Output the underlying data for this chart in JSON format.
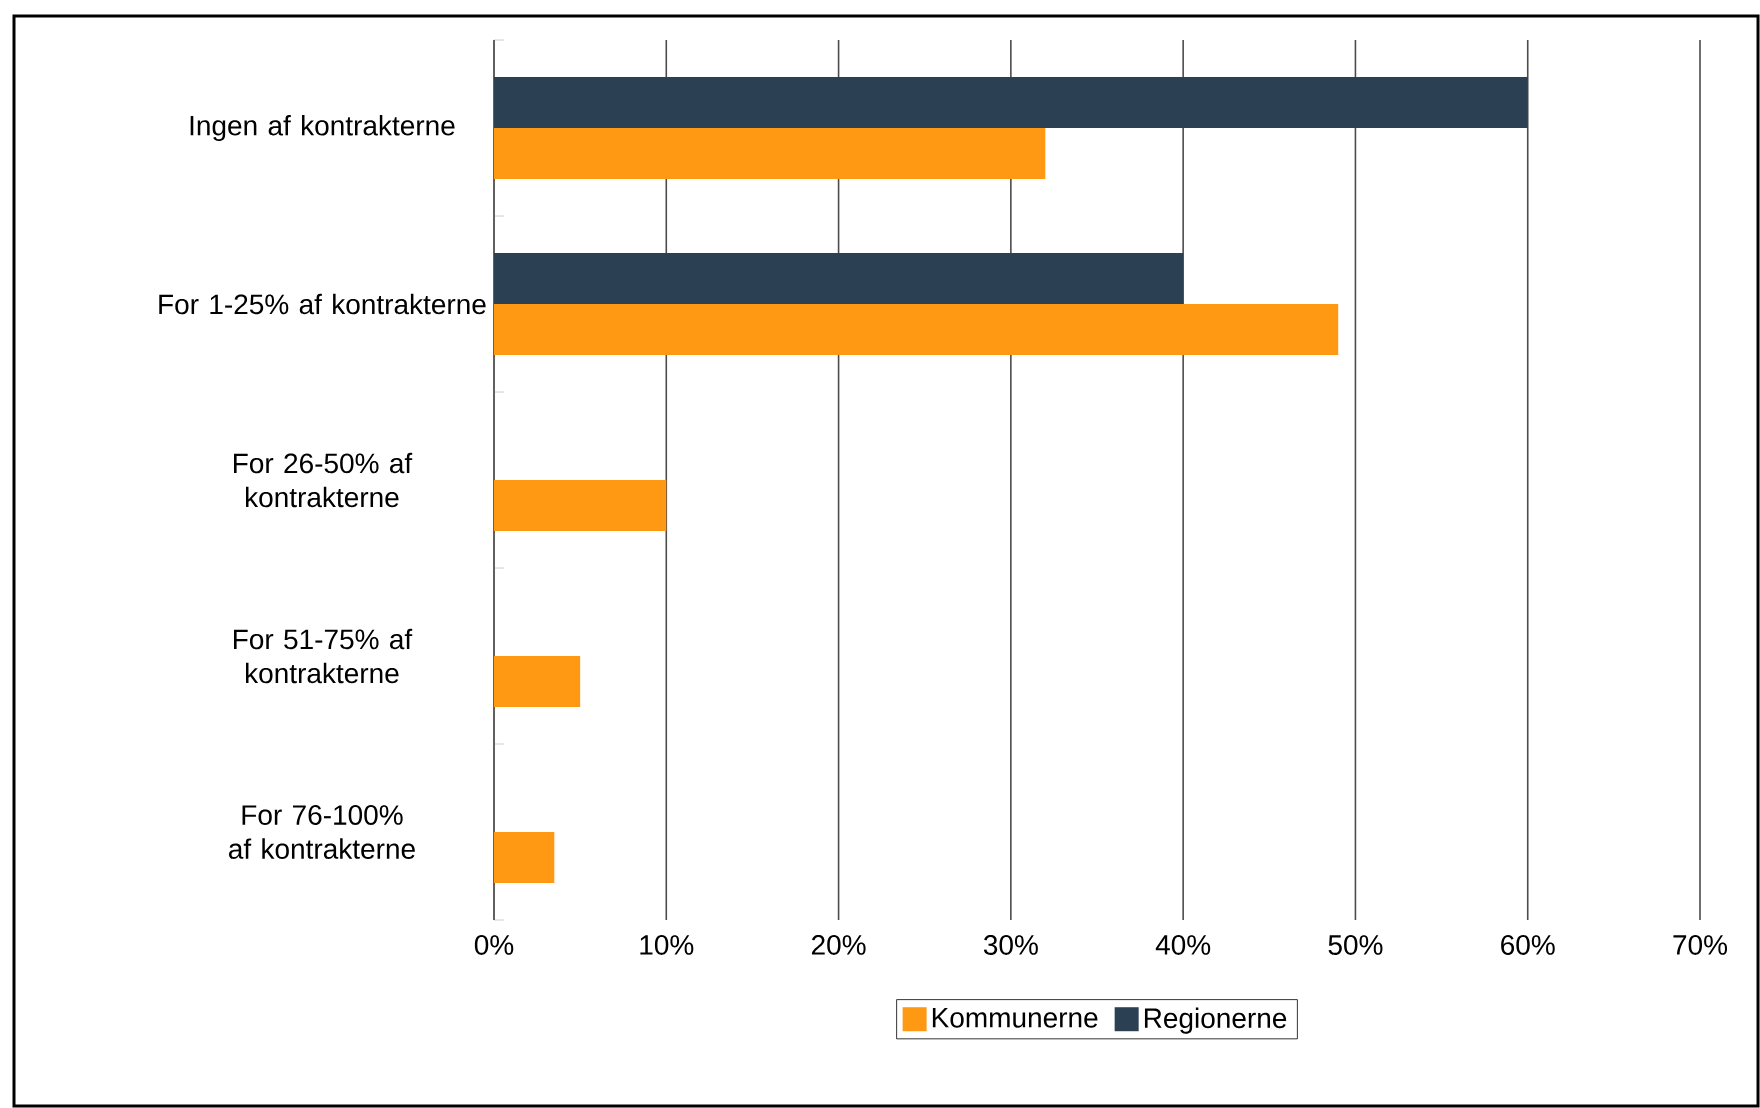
{
  "chart_data": {
    "type": "bar",
    "orientation": "horizontal",
    "categories": [
      "Ingen af kontrakterne",
      "For 1-25% af kontrakterne",
      "For 26-50% af kontrakterne",
      "For 51-75% af kontrakterne",
      "For 76-100% af kontrakterne"
    ],
    "series": [
      {
        "name": "Kommunerne",
        "color": "#ff9914",
        "values": [
          32,
          49,
          10,
          5,
          3.5
        ]
      },
      {
        "name": "Regionerne",
        "color": "#2b4153",
        "values": [
          60,
          40,
          0,
          0,
          0
        ]
      }
    ],
    "xlim": [
      0,
      70
    ],
    "xticks": [
      {
        "value": 0,
        "label": "0%"
      },
      {
        "value": 10,
        "label": "10%"
      },
      {
        "value": 20,
        "label": "20%"
      },
      {
        "value": 30,
        "label": "30%"
      },
      {
        "value": 40,
        "label": "40%"
      },
      {
        "value": 50,
        "label": "50%"
      },
      {
        "value": 60,
        "label": "60%"
      },
      {
        "value": 70,
        "label": "70%"
      }
    ],
    "grid": "x",
    "legend": "bottom"
  }
}
